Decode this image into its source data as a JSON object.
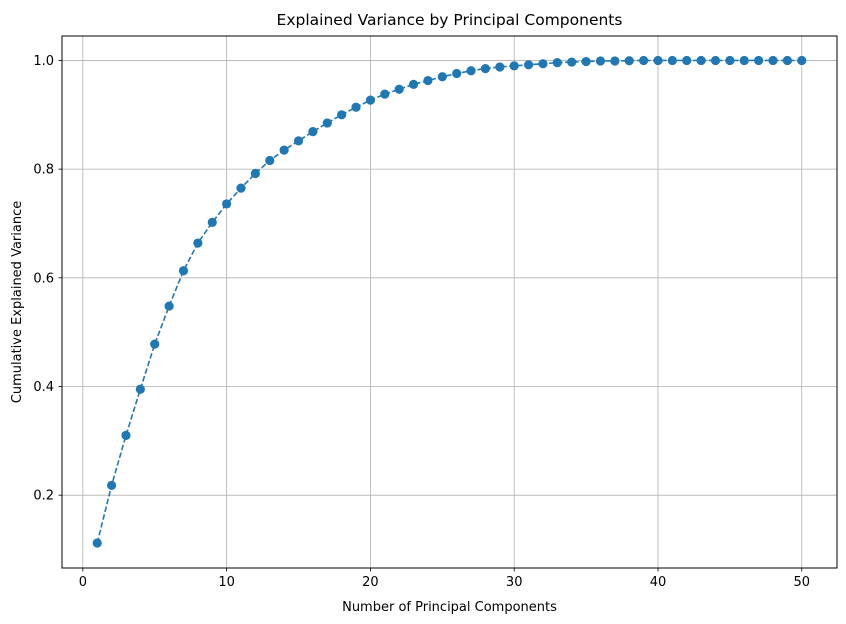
{
  "chart_data": {
    "type": "line",
    "title": "Explained Variance by Principal Components",
    "xlabel": "Number of Principal Components",
    "ylabel": "Cumulative Explained Variance",
    "xlim": [
      -1.45,
      52.45
    ],
    "ylim": [
      0.066,
      1.045
    ],
    "xticks": [
      0,
      10,
      20,
      30,
      40,
      50
    ],
    "yticks": [
      0.2,
      0.4,
      0.6,
      0.8,
      1.0
    ],
    "xtick_labels": [
      "0",
      "10",
      "20",
      "30",
      "40",
      "50"
    ],
    "ytick_labels": [
      "0.2",
      "0.4",
      "0.6",
      "0.8",
      "1.0"
    ],
    "grid": true,
    "line_style": "dashed",
    "marker": "circle",
    "color": "#1f77b4",
    "x": [
      1,
      2,
      3,
      4,
      5,
      6,
      7,
      8,
      9,
      10,
      11,
      12,
      13,
      14,
      15,
      16,
      17,
      18,
      19,
      20,
      21,
      22,
      23,
      24,
      25,
      26,
      27,
      28,
      29,
      30,
      31,
      32,
      33,
      34,
      35,
      36,
      37,
      38,
      39,
      40,
      41,
      42,
      43,
      44,
      45,
      46,
      47,
      48,
      49,
      50
    ],
    "y": [
      0.112,
      0.218,
      0.31,
      0.395,
      0.478,
      0.548,
      0.613,
      0.664,
      0.702,
      0.736,
      0.765,
      0.792,
      0.816,
      0.835,
      0.852,
      0.869,
      0.885,
      0.9,
      0.914,
      0.927,
      0.938,
      0.947,
      0.956,
      0.963,
      0.97,
      0.976,
      0.981,
      0.985,
      0.988,
      0.99,
      0.992,
      0.994,
      0.996,
      0.997,
      0.998,
      0.999,
      0.999,
      0.9995,
      1.0,
      1.0,
      1.0,
      1.0,
      1.0,
      1.0,
      1.0,
      1.0,
      1.0,
      1.0,
      1.0,
      1.0
    ]
  }
}
